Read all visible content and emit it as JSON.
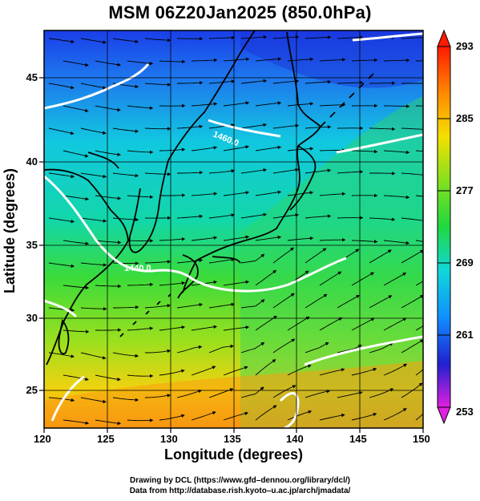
{
  "title": "MSM 06Z20Jan2025 (850.0hPa)",
  "axes": {
    "xlabel": "Longitude (degrees)",
    "ylabel": "Latitude  (degrees)",
    "x_ticks": [
      "120",
      "125",
      "130",
      "135",
      "140",
      "145",
      "150"
    ],
    "y_ticks": [
      "45",
      "40",
      "35",
      "30",
      "25"
    ],
    "xlim": [
      120,
      150
    ],
    "ylim": [
      22.4,
      47.6
    ]
  },
  "colorbar": {
    "labels": [
      "293",
      "285",
      "277",
      "269",
      "261",
      "253"
    ],
    "range": [
      253,
      293
    ],
    "colors": [
      "#ff00ff",
      "#1a1aff",
      "#00e5e5",
      "#22dd22",
      "#ffe000",
      "#ff2000"
    ]
  },
  "contours": [
    {
      "label": "1440.0",
      "value": 1440
    },
    {
      "label": "1460.0",
      "value": 1460
    }
  ],
  "credits": {
    "line1": "Drawing by DCL (https://www.gfd–dennou.org/library/dcl/)",
    "line2": "Data from http://database.rish.kyoto–u.ac.jp/arch/jmadata/"
  }
}
